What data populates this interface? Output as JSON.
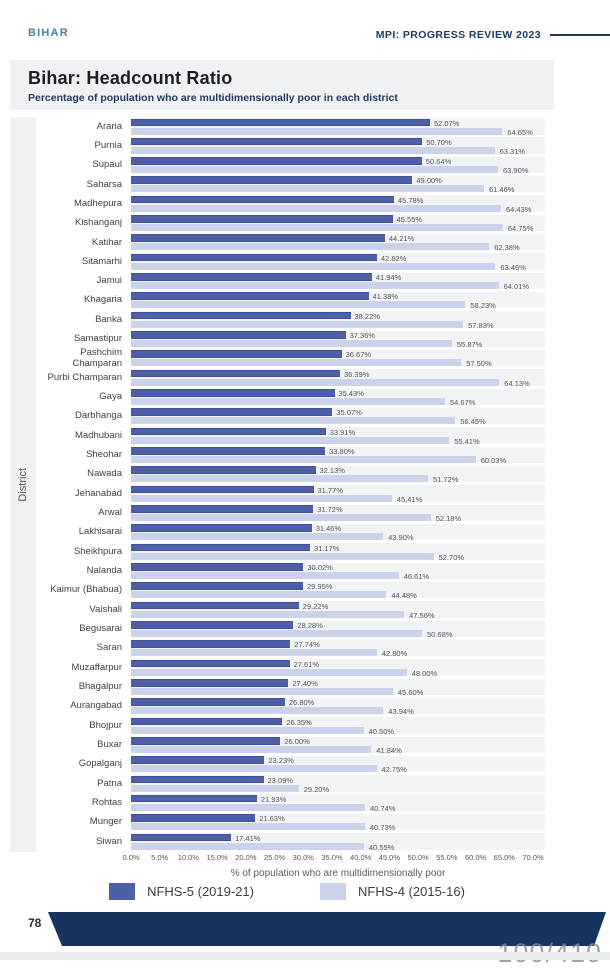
{
  "header": {
    "left": "BIHAR",
    "right": "MPI: PROGRESS REVIEW 2023"
  },
  "title_block": {
    "title": "Bihar: Headcount Ratio",
    "subtitle": "Percentage of population who are multidimensionally poor in each district"
  },
  "chart_data": {
    "type": "bar",
    "orientation": "horizontal",
    "title": "Bihar: Headcount Ratio",
    "xlabel": "% of population who are multidimensionally poor",
    "ylabel": "District",
    "xlim": [
      0,
      70
    ],
    "x_ticks": [
      "0.0%",
      "5.0%",
      "10.0%",
      "15.0%",
      "20.0%",
      "25.0%",
      "30.0%",
      "35.0%",
      "40.0%",
      "45.0%",
      "50.0%",
      "55.0%",
      "60.0%",
      "65.0%",
      "70.0%"
    ],
    "grid": false,
    "legend_position": "bottom",
    "value_labels": true,
    "categories": [
      "Araria",
      "Purnia",
      "Supaul",
      "Saharsa",
      "Madhepura",
      "Kishanganj",
      "Katihar",
      "Sitamarhi",
      "Jamui",
      "Khagaria",
      "Banka",
      "Samastipur",
      "Pashchim Champaran",
      "Purbi Champaran",
      "Gaya",
      "Darbhanga",
      "Madhubani",
      "Sheohar",
      "Nawada",
      "Jehanabad",
      "Arwal",
      "Lakhisarai",
      "Sheikhpura",
      "Nalanda",
      "Kaimur (Bhabua)",
      "Vaishali",
      "Begusarai",
      "Saran",
      "Muzaffarpur",
      "Bhagalpur",
      "Aurangabad",
      "Bhojpur",
      "Buxar",
      "Gopalganj",
      "Patna",
      "Rohtas",
      "Munger",
      "Siwan"
    ],
    "series": [
      {
        "name": "NFHS-5 (2019-21)",
        "color": "#4d5fa6",
        "values": [
          52.07,
          50.7,
          50.64,
          49.0,
          45.78,
          45.55,
          44.21,
          42.82,
          41.94,
          41.38,
          38.22,
          37.36,
          36.67,
          36.39,
          35.43,
          35.07,
          33.91,
          33.8,
          32.13,
          31.77,
          31.72,
          31.46,
          31.17,
          30.02,
          29.95,
          29.22,
          28.28,
          27.74,
          27.61,
          27.4,
          26.8,
          26.35,
          26.0,
          23.23,
          23.09,
          21.93,
          21.63,
          17.41
        ]
      },
      {
        "name": "NFHS-4 (2015-16)",
        "color": "#cbd3ea",
        "values": [
          64.65,
          63.31,
          63.9,
          61.46,
          64.43,
          64.75,
          62.38,
          63.46,
          64.01,
          58.23,
          57.83,
          55.87,
          57.5,
          64.13,
          54.67,
          56.45,
          55.41,
          60.03,
          51.72,
          45.41,
          52.18,
          43.9,
          52.7,
          46.61,
          44.48,
          47.56,
          50.68,
          42.8,
          48.0,
          45.6,
          43.94,
          40.5,
          41.84,
          42.75,
          29.2,
          40.74,
          40.73,
          40.55
        ]
      }
    ]
  },
  "footer": {
    "page_number": "78",
    "watermark": "100/410"
  },
  "colors": {
    "accent_navy": "#1e3a62",
    "banner_navy": "#17345f",
    "bar_dark": "#4d5fa6",
    "bar_light": "#cbd3ea",
    "row_band": "#f2f3f5",
    "header_teal": "#4a81a0",
    "title_bg": "#f0f1f2"
  }
}
